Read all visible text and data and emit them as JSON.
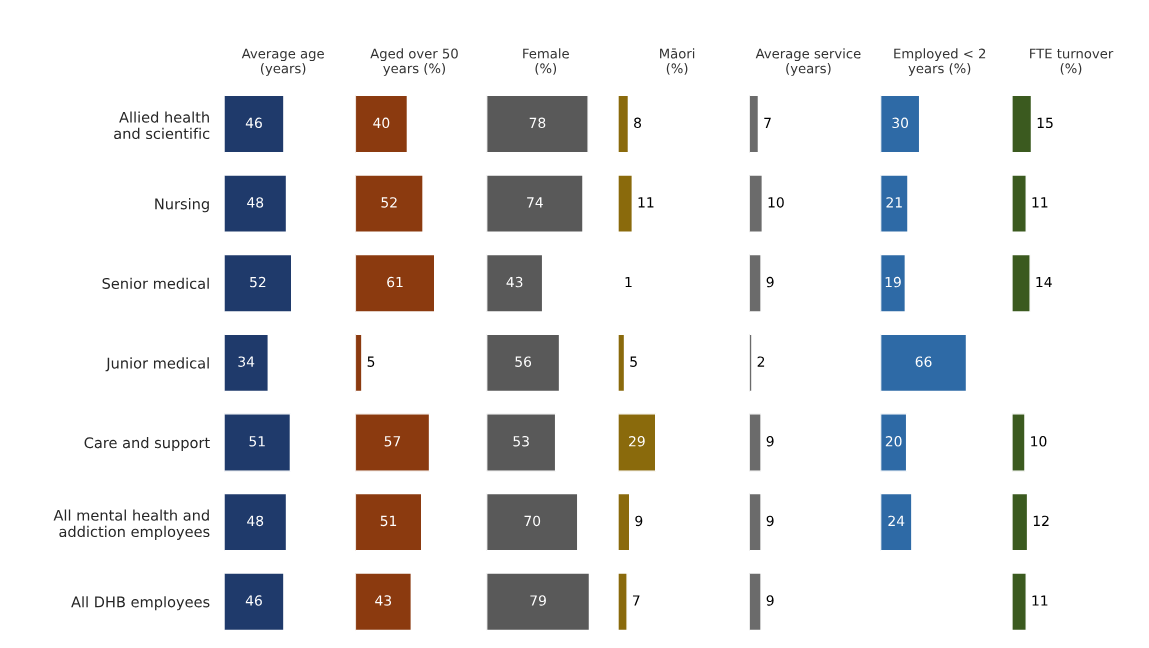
{
  "chart_data": [
    {
      "type": "bar",
      "orientation": "horizontal",
      "title": "Average age\n(years)",
      "categories": [
        "Allied health\nand scientific",
        "Nursing",
        "Senior medical",
        "Junior medical",
        "Care and support",
        "All mental health and\naddiction employees",
        "All DHB employees"
      ],
      "values": [
        46,
        48,
        52,
        34,
        51,
        48,
        46
      ],
      "color": "#1f3a6b",
      "data_labels": true,
      "tick_labels": "y"
    },
    {
      "type": "bar",
      "orientation": "horizontal",
      "title": "Aged over 50\nyears (%)",
      "values": [
        40,
        52,
        61,
        5,
        57,
        51,
        43
      ],
      "color": "#8b3a0f",
      "data_labels": true,
      "tick_labels": false
    },
    {
      "type": "bar",
      "orientation": "horizontal",
      "title": "Female\n(%)",
      "values": [
        78,
        74,
        43,
        56,
        53,
        70,
        79
      ],
      "color": "#595959",
      "data_labels": true,
      "tick_labels": false
    },
    {
      "type": "bar",
      "orientation": "horizontal",
      "title": "Māori\n(%)",
      "values": [
        8,
        11,
        1,
        5,
        29,
        9,
        7
      ],
      "color": "#8a6a0c",
      "data_labels": true,
      "tick_labels": false
    },
    {
      "type": "bar",
      "orientation": "horizontal",
      "title": "Average service\n(years)",
      "values": [
        7,
        10,
        9,
        2,
        9,
        9,
        9
      ],
      "color": "#6b6b6b",
      "data_labels": true,
      "tick_labels": false
    },
    {
      "type": "bar",
      "orientation": "horizontal",
      "title": "Employed < 2\nyears (%)",
      "values": [
        30,
        21,
        19,
        66,
        20,
        24,
        null
      ],
      "color": "#2e6aa6",
      "data_labels": true,
      "tick_labels": false
    },
    {
      "type": "bar",
      "orientation": "horizontal",
      "title": "FTE turnover\n(%)",
      "values": [
        15,
        11,
        14,
        null,
        10,
        12,
        11
      ],
      "color": "#3b5a1f",
      "data_labels": true,
      "tick_labels": false
    }
  ]
}
